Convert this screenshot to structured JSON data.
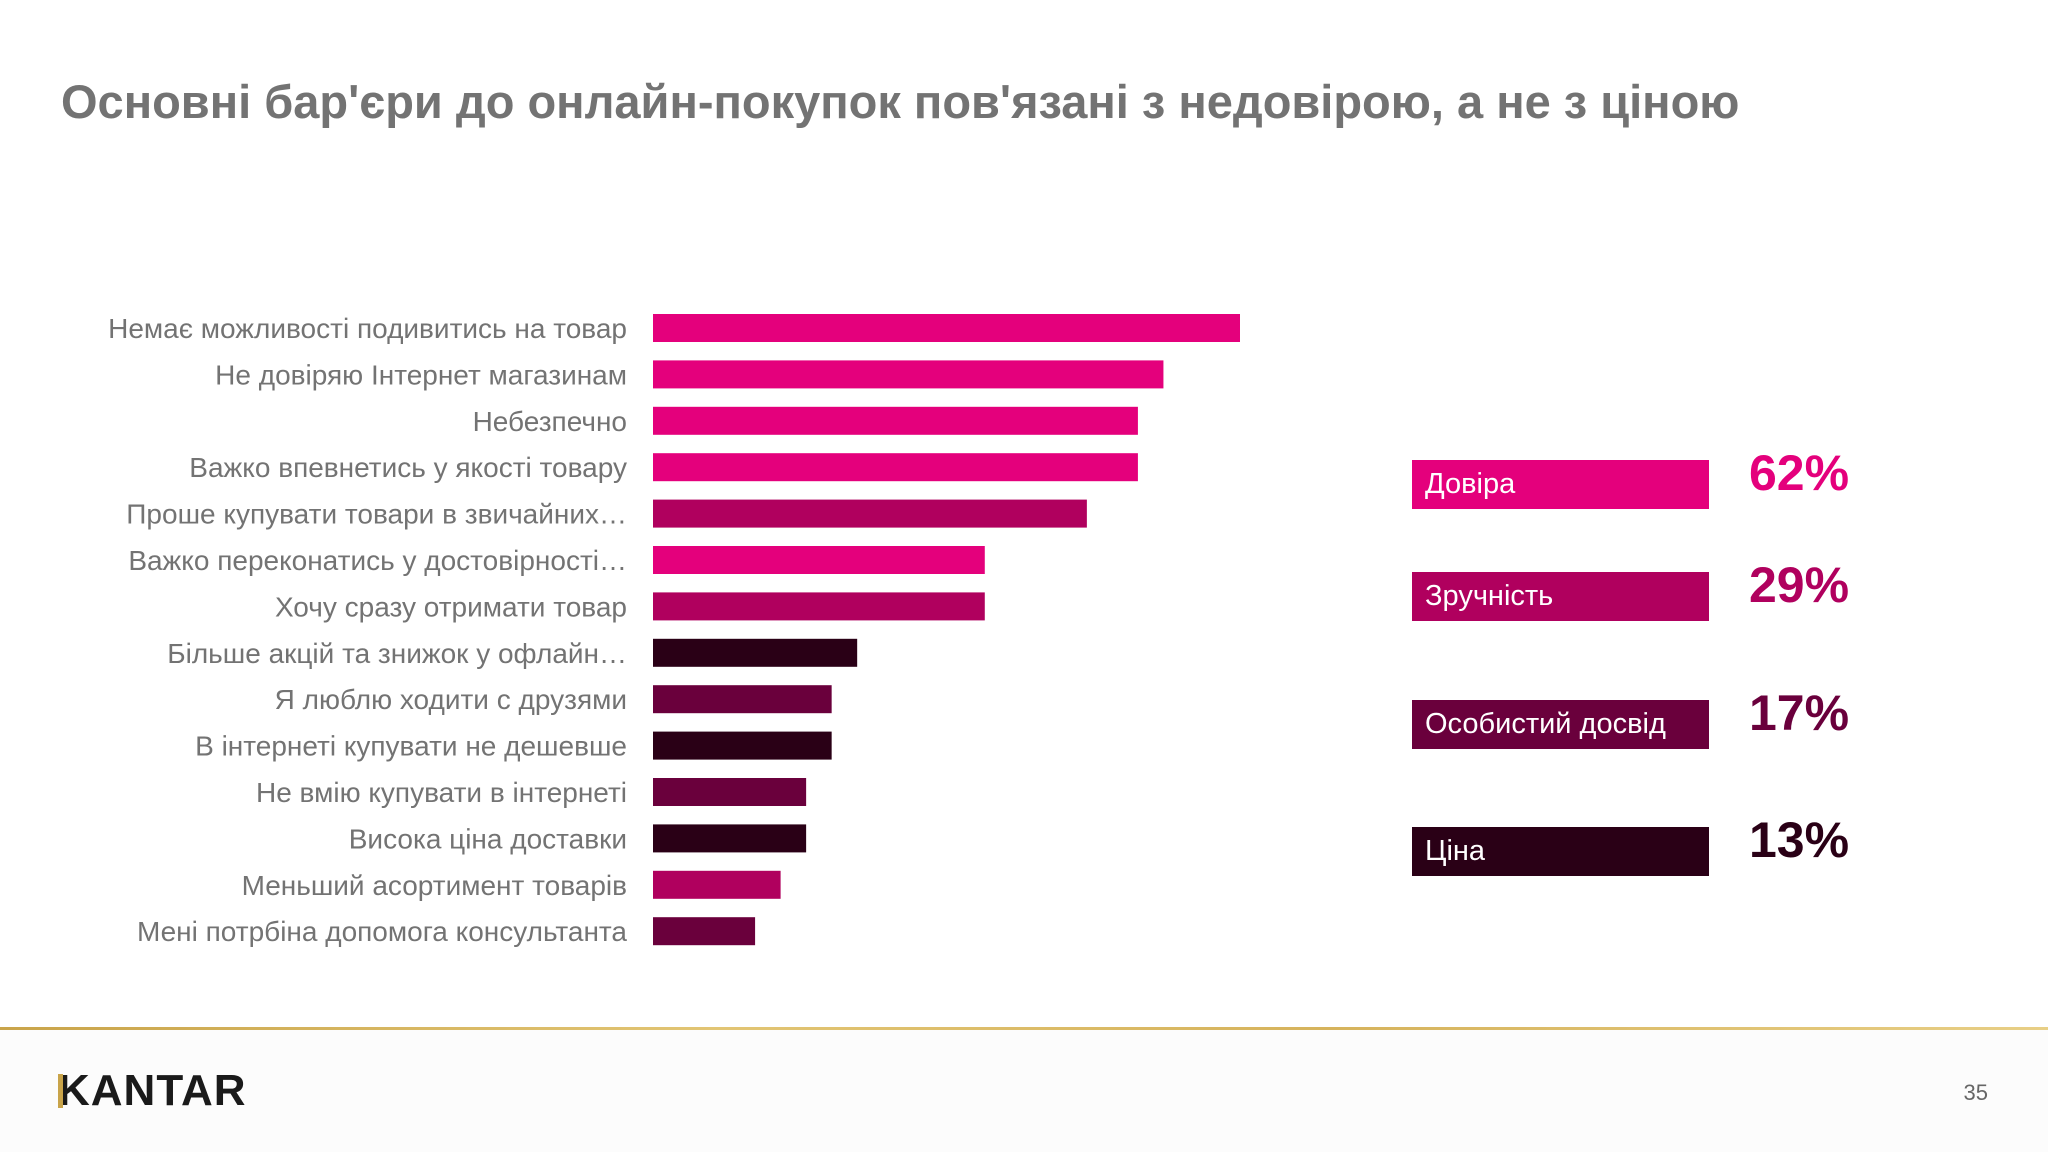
{
  "title": "Основні бар'єри до онлайн-покупок пов'язані з недовірою, а не з ціною",
  "colors": {
    "trust": "#e4007c",
    "convenience": "#b0005e",
    "experience": "#6a003c",
    "price": "#2a0016",
    "label_text": "#737373"
  },
  "chart_data": {
    "type": "bar",
    "orientation": "horizontal",
    "title": "",
    "xlabel": "",
    "ylabel": "",
    "xlim": [
      0,
      45
    ],
    "grid": false,
    "categories": [
      "Немає можливості подивитись на товар",
      "Не довіряю Інтернет магазинам",
      "Небезпечно",
      "Важко впевнетись у якості товару",
      "Проше купувати товари в звичайних…",
      "Важко переконатись у достовірності…",
      "Хочу сразу отримати товар",
      "Більше акцій та знижок у офлайн…",
      "Я люблю ходити с друзями",
      "В інтернеті купувати не дешевше",
      "Не вмію купувати в інтернеті",
      "Висока ціна доставки",
      "Меньший асортимент товарів",
      "Мені потрбіна допомога консультанта"
    ],
    "values": [
      23,
      20,
      19,
      19,
      17,
      13,
      13,
      8,
      7,
      7,
      6,
      6,
      5,
      4
    ],
    "groups": [
      "trust",
      "trust",
      "trust",
      "trust",
      "convenience",
      "trust",
      "convenience",
      "price",
      "experience",
      "price",
      "experience",
      "price",
      "convenience",
      "experience"
    ]
  },
  "legend": [
    {
      "key": "trust",
      "label": "Довіра",
      "value": "62%"
    },
    {
      "key": "convenience",
      "label": "Зручність",
      "value": "29%"
    },
    {
      "key": "experience",
      "label": "Особистий досвід",
      "value": "17%"
    },
    {
      "key": "price",
      "label": "Ціна",
      "value": "13%"
    }
  ],
  "footer": {
    "logo": "KANTAR",
    "page_number": "35"
  }
}
